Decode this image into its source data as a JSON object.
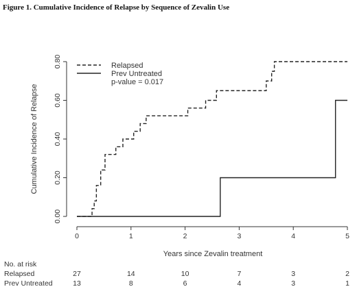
{
  "figure_title": "Figure 1. Cumulative Incidence of Relapse by Sequence of Zevalin Use",
  "chart_data": {
    "type": "line",
    "title": "Figure 1. Cumulative Incidence of Relapse by Sequence of Zevalin Use",
    "xlabel": "Years since Zevalin treatment",
    "ylabel": "Cumulative Incidence of Relapse",
    "xlim": [
      0,
      5
    ],
    "ylim": [
      0,
      0.8
    ],
    "x_ticks": [
      "0",
      "1",
      "2",
      "3",
      "4",
      "5"
    ],
    "y_ticks": [
      "0.00",
      "0.20",
      "0.40",
      "0.60",
      "0.80"
    ],
    "grid": false,
    "legend_position": "top-left",
    "annotation": "p-value = 0.017",
    "series": [
      {
        "name": "Relapsed",
        "style": "dashed",
        "color": "#222222",
        "step_x": [
          0,
          0.28,
          0.32,
          0.36,
          0.44,
          0.52,
          0.72,
          0.85,
          1.05,
          1.17,
          1.28,
          2.05,
          2.38,
          2.58,
          3.5,
          3.6,
          3.65,
          5.0
        ],
        "step_y": [
          0,
          0.04,
          0.08,
          0.16,
          0.24,
          0.32,
          0.36,
          0.4,
          0.44,
          0.48,
          0.52,
          0.56,
          0.6,
          0.65,
          0.7,
          0.75,
          0.8,
          0.8
        ]
      },
      {
        "name": "Prev Untreated",
        "style": "solid",
        "color": "#222222",
        "step_x": [
          0,
          2.65,
          4.78,
          5.0
        ],
        "step_y": [
          0,
          0.2,
          0.6,
          0.6
        ]
      }
    ]
  },
  "risk_table": {
    "header_line1": "No. at risk",
    "rows": [
      {
        "label": "Relapsed",
        "counts": [
          "27",
          "14",
          "10",
          "7",
          "3",
          "2"
        ]
      },
      {
        "label": "Prev Untreated",
        "counts": [
          "13",
          "8",
          "6",
          "4",
          "3",
          "1"
        ]
      }
    ]
  }
}
